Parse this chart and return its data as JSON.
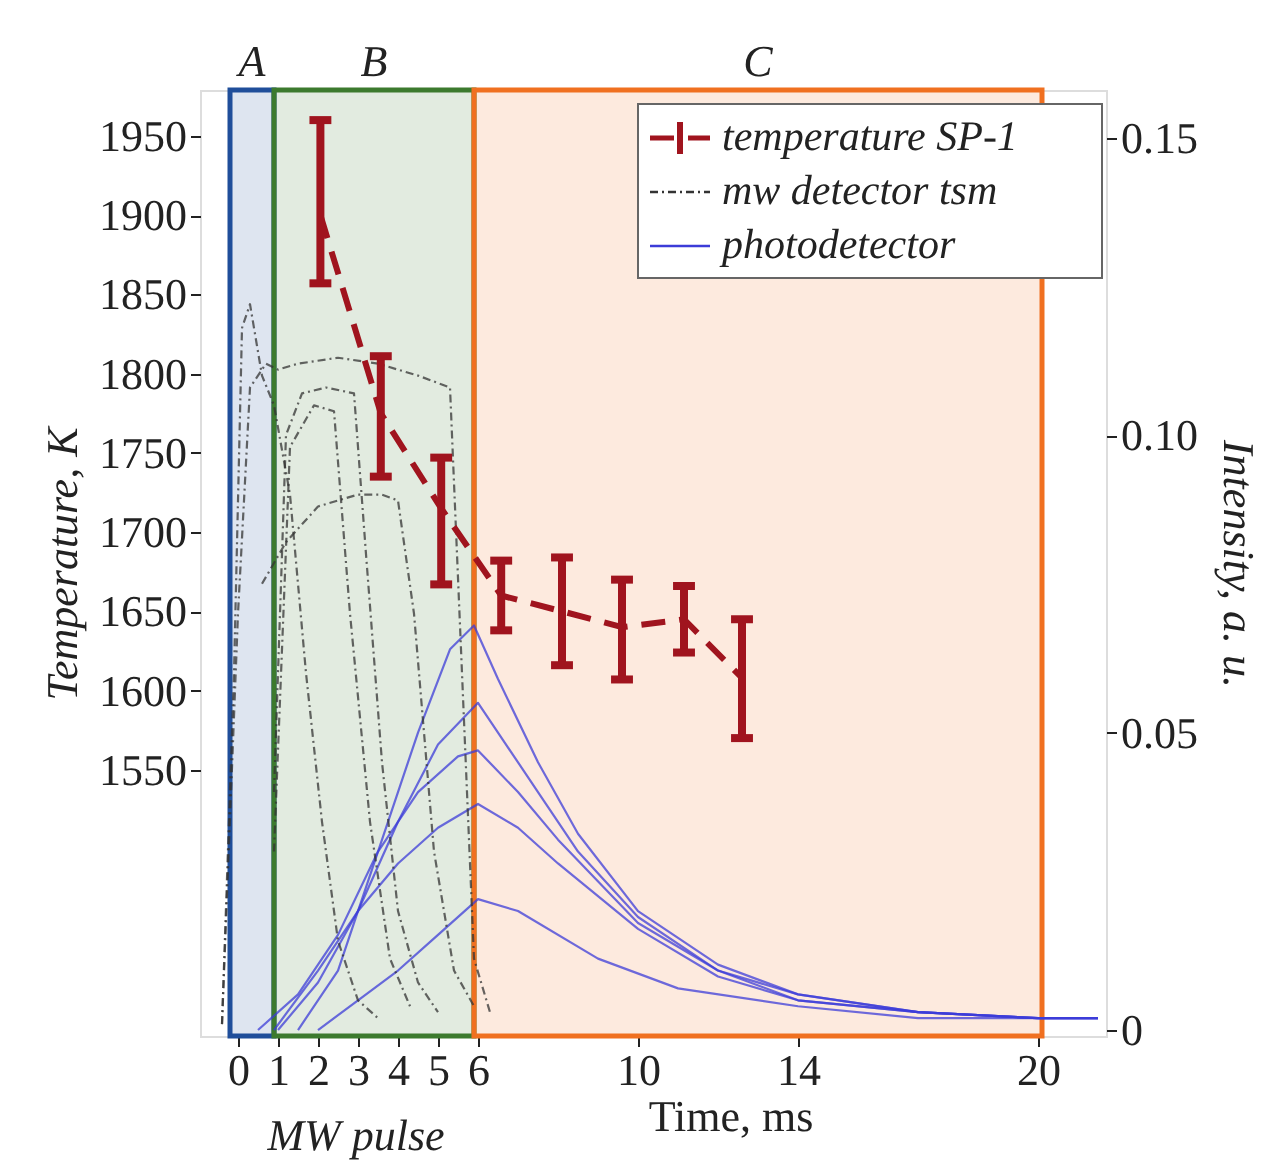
{
  "chart_data": {
    "type": "line",
    "xlabel": "Time, ms",
    "ylabel": "Temperature, K",
    "y2label": "Intensity, a. u.",
    "xlim": [
      -0.95,
      21.7
    ],
    "xticks": [
      0,
      1,
      2,
      3,
      4,
      5,
      6,
      10,
      14,
      20
    ],
    "ylim": [
      1382,
      1979
    ],
    "yticks": [
      1550,
      1600,
      1650,
      1700,
      1750,
      1800,
      1850,
      1900,
      1950
    ],
    "y2lim": [
      -0.001,
      0.158
    ],
    "y2ticks": [
      0,
      0.05,
      {
        "value": 0.1,
        "label": "0.10"
      },
      0.15
    ],
    "grid": false,
    "legend": "top right",
    "annotations": [
      "MW pulse"
    ],
    "bands": [
      {
        "axis": "x",
        "from": -0.2,
        "to": 0.9,
        "label": "A",
        "color": "#1f4e9a"
      },
      {
        "axis": "x",
        "from": 0.9,
        "to": 5.9,
        "label": "B",
        "color": "#3c7a2e"
      },
      {
        "axis": "x",
        "from": 5.9,
        "to": 20.1,
        "label": "C",
        "color": "#f07020"
      }
    ],
    "series": [
      {
        "name": "temperature SP-1",
        "color": "#a0141e",
        "line_style": "dashed",
        "x": [
          2.06,
          3.57,
          5.08,
          6.58,
          8.1,
          9.6,
          11.15,
          12.6
        ],
        "values": [
          1900,
          1775,
          1715,
          1660,
          1650,
          1640,
          1645,
          1608
        ],
        "errors": [
          [
            1857,
            1960
          ],
          [
            1735,
            1811
          ],
          [
            1667,
            1747
          ],
          [
            1638,
            1682
          ],
          [
            1616,
            1684
          ],
          [
            1607,
            1670
          ],
          [
            1624,
            1666
          ],
          [
            1570,
            1645
          ]
        ]
      },
      {
        "name": "mw detector tsm",
        "color": "#333333",
        "line_style": "dotted",
        "axis": "y2",
        "x": [
          -0.4,
          -0.1,
          0.1,
          0.3,
          0.6,
          0.9,
          1.3,
          1.7,
          2.1,
          2.5,
          3.0,
          3.5
        ],
        "values": [
          0.001,
          0.06,
          0.118,
          0.122,
          0.11,
          0.105,
          0.09,
          0.06,
          0.035,
          0.015,
          0.005,
          0.002
        ]
      },
      {
        "color": "#333333",
        "line_style": "dotted",
        "axis": "y2",
        "x": [
          -0.4,
          0,
          0.3,
          0.7,
          1.0,
          1.5,
          2.5,
          3.5,
          4.5,
          5.3,
          5.6,
          5.9,
          6.3
        ],
        "values": [
          0.001,
          0.07,
          0.108,
          0.112,
          0.111,
          0.112,
          0.113,
          0.112,
          0.11,
          0.108,
          0.06,
          0.012,
          0.003
        ]
      },
      {
        "color": "#333333",
        "line_style": "dotted",
        "axis": "y2",
        "x": [
          0.9,
          1.2,
          1.6,
          2.2,
          2.9,
          3.2,
          3.6,
          4.0,
          4.5,
          5.0
        ],
        "values": [
          0.04,
          0.1,
          0.107,
          0.108,
          0.107,
          0.08,
          0.045,
          0.02,
          0.008,
          0.003
        ]
      },
      {
        "color": "#333333",
        "line_style": "dotted",
        "axis": "y2",
        "x": [
          0.9,
          1.3,
          1.9,
          2.4,
          2.8,
          3.3,
          3.8,
          4.3
        ],
        "values": [
          0.03,
          0.098,
          0.105,
          0.104,
          0.07,
          0.035,
          0.012,
          0.004
        ]
      },
      {
        "color": "#333333",
        "line_style": "dotted",
        "axis": "y2",
        "x": [
          0.6,
          1.2,
          2.0,
          3.0,
          3.6,
          4.0,
          4.4,
          4.9,
          5.4,
          5.9
        ],
        "values": [
          0.075,
          0.082,
          0.088,
          0.09,
          0.09,
          0.089,
          0.07,
          0.03,
          0.01,
          0.004
        ]
      },
      {
        "name": "photodetector",
        "color": "#3c3cd8",
        "line_style": "solid",
        "axis": "y2",
        "x": [
          1.5,
          2.5,
          3.5,
          4.5,
          5.3,
          5.9,
          6.5,
          7.5,
          8.5,
          10,
          12,
          14,
          17,
          20,
          21.5
        ],
        "values": [
          0.0,
          0.01,
          0.03,
          0.05,
          0.064,
          0.068,
          0.059,
          0.045,
          0.033,
          0.02,
          0.011,
          0.006,
          0.003,
          0.002,
          0.002
        ]
      },
      {
        "color": "#3c3cd8",
        "line_style": "solid",
        "axis": "y2",
        "x": [
          1,
          2,
          3,
          4,
          5,
          6,
          6.5,
          7.5,
          8.5,
          10,
          12,
          14,
          17,
          20,
          21.5
        ],
        "values": [
          0,
          0.008,
          0.02,
          0.035,
          0.048,
          0.055,
          0.05,
          0.04,
          0.03,
          0.019,
          0.01,
          0.006,
          0.003,
          0.002,
          0.002
        ]
      },
      {
        "color": "#3c3cd8",
        "line_style": "solid",
        "axis": "y2",
        "x": [
          0.5,
          1.5,
          2.5,
          3.5,
          4.5,
          5.5,
          6.0,
          7,
          8,
          10,
          12,
          14,
          17,
          20,
          21.5
        ],
        "values": [
          0,
          0.006,
          0.016,
          0.03,
          0.04,
          0.046,
          0.047,
          0.04,
          0.032,
          0.018,
          0.01,
          0.005,
          0.003,
          0.002,
          0.002
        ]
      },
      {
        "color": "#3c3cd8",
        "line_style": "solid",
        "axis": "y2",
        "x": [
          0.9,
          2,
          3,
          4,
          5,
          6,
          7,
          8,
          10,
          12,
          14,
          17,
          20,
          21.5
        ],
        "values": [
          0,
          0.01,
          0.02,
          0.028,
          0.034,
          0.038,
          0.034,
          0.028,
          0.017,
          0.009,
          0.005,
          0.003,
          0.002,
          0.002
        ]
      },
      {
        "color": "#3c3cd8",
        "line_style": "solid",
        "axis": "y2",
        "x": [
          2,
          3,
          4,
          5,
          6,
          7,
          9,
          11,
          14,
          17,
          20,
          21.5
        ],
        "values": [
          0,
          0.005,
          0.01,
          0.016,
          0.022,
          0.02,
          0.012,
          0.007,
          0.004,
          0.002,
          0.002,
          0.002
        ]
      }
    ]
  }
}
